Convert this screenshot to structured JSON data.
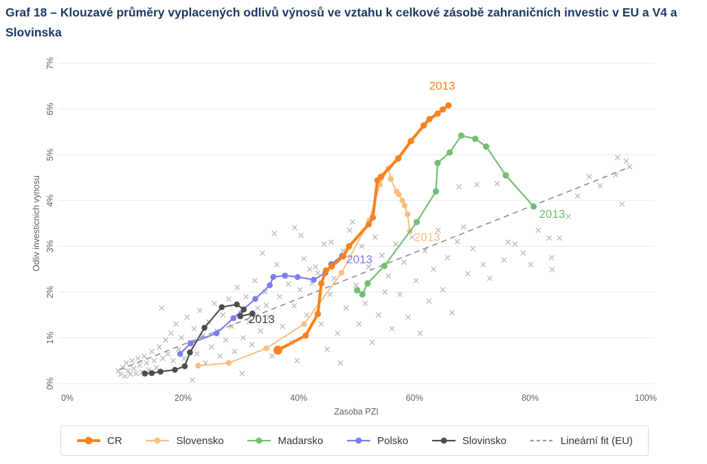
{
  "title": "Graf 18 – Klouzavé průměry vyplacených odlivů výnosů ve vztahu k celkové zásobě zahraničních investic v EU a V4 a Slovinska",
  "colors": {
    "title_text": "#1b3a66",
    "axis_text": "#5a6068",
    "gridline": "#e3eaf0",
    "scatter": "#b5b5b5",
    "fit_line": "#8a8a8a"
  },
  "chart_data": {
    "type": "scatter",
    "title": "Graf 18 – Klouzavé průměry vyplacených odlivů výnosů ve vztahu k celkové zásobě zahraničních investic v EU a V4 a Slovinska",
    "xlabel": "Zasoba PZI",
    "ylabel": "Odliv investicnich vynosu",
    "xlim": [
      0,
      100
    ],
    "ylim": [
      0,
      7
    ],
    "grid": "horizontal",
    "legend_position": "bottom",
    "x_ticks": [
      {
        "value": 0,
        "label": "0%"
      },
      {
        "value": 20,
        "label": "20%"
      },
      {
        "value": 40,
        "label": "40%"
      },
      {
        "value": 60,
        "label": "60%"
      },
      {
        "value": 80,
        "label": "80%"
      },
      {
        "value": 100,
        "label": "100%"
      }
    ],
    "y_ticks": [
      {
        "value": 0,
        "label": "0%"
      },
      {
        "value": 1,
        "label": "1%"
      },
      {
        "value": 2,
        "label": "2%"
      },
      {
        "value": 3,
        "label": "3%"
      },
      {
        "value": 4,
        "label": "4%"
      },
      {
        "value": 5,
        "label": "5%"
      },
      {
        "value": 6,
        "label": "6%"
      },
      {
        "value": 7,
        "label": "7%"
      }
    ],
    "series": [
      {
        "name": "Slovensko",
        "color": "#fcbe7e",
        "line_width": 2,
        "marker": "circle",
        "marker_r": 4.2,
        "end_label": {
          "text": "2013",
          "x": 62.2,
          "y": 3.12
        },
        "points": [
          [
            22.6,
            0.39
          ],
          [
            27.9,
            0.45
          ],
          [
            34.4,
            0.77
          ],
          [
            40.9,
            1.3
          ],
          [
            47.4,
            2.42
          ],
          [
            52.2,
            3.56
          ],
          [
            54.0,
            4.35
          ],
          [
            55.5,
            4.7
          ],
          [
            55.9,
            4.47
          ],
          [
            56.9,
            4.2
          ],
          [
            57.3,
            4.13
          ],
          [
            57.9,
            4.0
          ],
          [
            58.3,
            3.89
          ],
          [
            58.8,
            3.7
          ],
          [
            59.2,
            3.33
          ]
        ]
      },
      {
        "name": "Madarsko",
        "color": "#72bf72",
        "line_width": 2.2,
        "marker": "circle",
        "marker_r": 4.6,
        "end_label": {
          "text": "2013",
          "x": 83.8,
          "y": 3.62
        },
        "points": [
          [
            50.1,
            2.04
          ],
          [
            51.0,
            1.95
          ],
          [
            51.9,
            2.19
          ],
          [
            54.8,
            2.57
          ],
          [
            60.4,
            3.53
          ],
          [
            63.7,
            4.2
          ],
          [
            64.0,
            4.82
          ],
          [
            66.1,
            5.05
          ],
          [
            68.1,
            5.42
          ],
          [
            70.5,
            5.35
          ],
          [
            72.4,
            5.18
          ],
          [
            75.8,
            4.55
          ],
          [
            80.6,
            3.87
          ]
        ]
      },
      {
        "name": "Polsko",
        "color": "#7b7cf0",
        "line_width": 2.2,
        "marker": "circle",
        "marker_r": 4.3,
        "end_label": {
          "text": "2013",
          "x": 50.5,
          "y": 2.63
        },
        "points": [
          [
            19.5,
            0.65
          ],
          [
            21.3,
            0.88
          ],
          [
            25.8,
            1.1
          ],
          [
            28.7,
            1.43
          ],
          [
            32.5,
            1.85
          ],
          [
            35.0,
            2.15
          ],
          [
            35.6,
            2.33
          ],
          [
            37.6,
            2.36
          ],
          [
            39.8,
            2.33
          ],
          [
            42.6,
            2.27
          ],
          [
            44.6,
            2.42
          ],
          [
            45.6,
            2.61
          ],
          [
            47.5,
            2.79
          ]
        ]
      },
      {
        "name": "Slovinsko",
        "color": "#4d4d4d",
        "line_width": 2.2,
        "marker": "circle",
        "marker_r": 4.3,
        "end_label": {
          "text": "2013",
          "x": 33.6,
          "y": 1.32
        },
        "points": [
          [
            13.4,
            0.22
          ],
          [
            14.6,
            0.23
          ],
          [
            16.1,
            0.26
          ],
          [
            18.6,
            0.3
          ],
          [
            20.3,
            0.38
          ],
          [
            21.2,
            0.68
          ],
          [
            23.7,
            1.22
          ],
          [
            26.7,
            1.67
          ],
          [
            29.3,
            1.73
          ],
          [
            30.5,
            1.62
          ],
          [
            29.9,
            1.47
          ],
          [
            32.0,
            1.53
          ]
        ]
      },
      {
        "name": "CR",
        "color": "#f8821f",
        "line_width": 4.2,
        "marker": "circle",
        "marker_r": 4.6,
        "start_marker_r": 6.5,
        "end_label": {
          "text": "2013",
          "x": 64.8,
          "y": 6.42
        },
        "points": [
          [
            36.4,
            0.73
          ],
          [
            41.2,
            1.05
          ],
          [
            43.3,
            1.52
          ],
          [
            43.9,
            2.19
          ],
          [
            44.7,
            2.47
          ],
          [
            45.7,
            2.56
          ],
          [
            47.7,
            2.78
          ],
          [
            48.7,
            3.0
          ],
          [
            52.1,
            3.48
          ],
          [
            52.8,
            3.63
          ],
          [
            53.6,
            4.44
          ],
          [
            54.2,
            4.52
          ],
          [
            57.2,
            4.92
          ],
          [
            59.4,
            5.3
          ],
          [
            61.6,
            5.64
          ],
          [
            62.6,
            5.78
          ],
          [
            64.0,
            5.9
          ],
          [
            64.9,
            5.99
          ],
          [
            65.9,
            6.08
          ]
        ]
      }
    ],
    "eu_scatter": {
      "name": "EU observations",
      "marker": "x",
      "color": "#b5b5b5",
      "points": [
        [
          8.8,
          0.28
        ],
        [
          9.2,
          0.2
        ],
        [
          9.6,
          0.35
        ],
        [
          10.0,
          0.16
        ],
        [
          10.2,
          0.45
        ],
        [
          10.5,
          0.28
        ],
        [
          10.9,
          0.2
        ],
        [
          11.2,
          0.5
        ],
        [
          11.5,
          0.33
        ],
        [
          11.9,
          0.22
        ],
        [
          12.2,
          0.55
        ],
        [
          12.5,
          0.4
        ],
        [
          12.9,
          0.25
        ],
        [
          13.3,
          0.6
        ],
        [
          13.7,
          0.45
        ],
        [
          14.1,
          0.3
        ],
        [
          14.6,
          0.7
        ],
        [
          15.0,
          0.5
        ],
        [
          15.4,
          0.35
        ],
        [
          15.9,
          0.8
        ],
        [
          16.3,
          1.65
        ],
        [
          16.5,
          0.55
        ],
        [
          17.0,
          0.95
        ],
        [
          17.4,
          0.65
        ],
        [
          17.9,
          1.1
        ],
        [
          18.3,
          0.5
        ],
        [
          18.8,
          1.3
        ],
        [
          19.2,
          0.75
        ],
        [
          19.7,
          1.0
        ],
        [
          20.2,
          0.55
        ],
        [
          20.7,
          1.45
        ],
        [
          21.2,
          0.9
        ],
        [
          21.6,
          0.08
        ],
        [
          21.9,
          1.2
        ],
        [
          22.4,
          0.65
        ],
        [
          22.9,
          1.6
        ],
        [
          23.4,
          1.05
        ],
        [
          23.9,
          0.45
        ],
        [
          24.4,
          1.35
        ],
        [
          24.9,
          0.8
        ],
        [
          25.4,
          1.75
        ],
        [
          25.9,
          1.15
        ],
        [
          26.4,
          0.6
        ],
        [
          26.9,
          1.5
        ],
        [
          27.4,
          0.95
        ],
        [
          27.9,
          1.85
        ],
        [
          28.4,
          1.25
        ],
        [
          28.9,
          0.7
        ],
        [
          29.4,
          2.1
        ],
        [
          29.9,
          1.55
        ],
        [
          30.2,
          0.22
        ],
        [
          30.4,
          1.0
        ],
        [
          30.9,
          1.9
        ],
        [
          31.4,
          1.35
        ],
        [
          31.9,
          0.85
        ],
        [
          32.4,
          2.25
        ],
        [
          32.9,
          1.65
        ],
        [
          33.4,
          1.15
        ],
        [
          33.7,
          2.85
        ],
        [
          34.2,
          2.0
        ],
        [
          34.4,
          1.71
        ],
        [
          34.9,
          1.45
        ],
        [
          35.4,
          0.6
        ],
        [
          35.8,
          3.28
        ],
        [
          36.2,
          2.6
        ],
        [
          36.7,
          1.9
        ],
        [
          37.2,
          1.25
        ],
        [
          37.7,
          2.35
        ],
        [
          38.2,
          2.18
        ],
        [
          38.7,
          0.9
        ],
        [
          39.2,
          1.7
        ],
        [
          39.3,
          3.41
        ],
        [
          39.7,
          0.5
        ],
        [
          40.2,
          2.05
        ],
        [
          40.4,
          3.24
        ],
        [
          40.9,
          2.73
        ],
        [
          41.4,
          1.5
        ],
        [
          41.9,
          2.5
        ],
        [
          42.3,
          2.19
        ],
        [
          42.9,
          2.55
        ],
        [
          43.3,
          2.42
        ],
        [
          43.9,
          1.3
        ],
        [
          44.4,
          3.05
        ],
        [
          44.9,
          0.75
        ],
        [
          45.4,
          1.95
        ],
        [
          45.6,
          3.09
        ],
        [
          46.1,
          2.3
        ],
        [
          46.7,
          1.1
        ],
        [
          47.2,
          0.45
        ],
        [
          47.7,
          2.9
        ],
        [
          48.2,
          1.65
        ],
        [
          48.8,
          3.35
        ],
        [
          49.3,
          3.53
        ],
        [
          49.9,
          2.15
        ],
        [
          50.4,
          1.3
        ],
        [
          50.9,
          3.0
        ],
        [
          51.5,
          1.75
        ],
        [
          52.1,
          2.55
        ],
        [
          52.7,
          0.9
        ],
        [
          53.2,
          3.2
        ],
        [
          53.8,
          1.5
        ],
        [
          54.4,
          2.8
        ],
        [
          54.9,
          2.0
        ],
        [
          55.5,
          2.35
        ],
        [
          56.1,
          1.2
        ],
        [
          56.8,
          3.05
        ],
        [
          57.5,
          1.95
        ],
        [
          58.2,
          2.65
        ],
        [
          58.9,
          1.45
        ],
        [
          59.6,
          3.2
        ],
        [
          60.3,
          2.25
        ],
        [
          61.0,
          1.1
        ],
        [
          61.8,
          2.9
        ],
        [
          62.5,
          1.8
        ],
        [
          63.3,
          2.5
        ],
        [
          64.1,
          3.35
        ],
        [
          64.9,
          2.05
        ],
        [
          65.7,
          2.75
        ],
        [
          66.5,
          1.55
        ],
        [
          67.4,
          3.1
        ],
        [
          67.7,
          4.3
        ],
        [
          68.5,
          3.42
        ],
        [
          69.2,
          2.4
        ],
        [
          70.1,
          2.95
        ],
        [
          70.8,
          4.35
        ],
        [
          71.9,
          2.6
        ],
        [
          73.0,
          2.3
        ],
        [
          74.3,
          4.37
        ],
        [
          75.5,
          2.7
        ],
        [
          76.2,
          3.09
        ],
        [
          77.4,
          3.05
        ],
        [
          78.8,
          2.85
        ],
        [
          80.1,
          2.6
        ],
        [
          81.4,
          3.35
        ],
        [
          83.3,
          3.18
        ],
        [
          83.7,
          2.75
        ],
        [
          83.8,
          2.49
        ],
        [
          85.1,
          3.18
        ],
        [
          86.6,
          3.65
        ],
        [
          88.2,
          4.1
        ],
        [
          90.2,
          4.52
        ],
        [
          92.1,
          4.32
        ],
        [
          94.8,
          4.56
        ],
        [
          95.1,
          4.94
        ],
        [
          95.9,
          3.92
        ],
        [
          96.6,
          4.86
        ],
        [
          97.2,
          4.74
        ]
      ]
    },
    "fit_line": {
      "name": "Lineární fit (EU)",
      "style": "dashed",
      "color": "#8a8a8a",
      "from": [
        9.0,
        0.3
      ],
      "to": [
        97.2,
        4.73
      ]
    }
  },
  "legend": {
    "items": [
      {
        "label": "CR",
        "color": "#f8821f",
        "swatch": "thick-line-dot"
      },
      {
        "label": "Slovensko",
        "color": "#fcbe7e",
        "swatch": "line-dot"
      },
      {
        "label": "Madarsko",
        "color": "#72bf72",
        "swatch": "line-dot"
      },
      {
        "label": "Polsko",
        "color": "#7b7cf0",
        "swatch": "line-dot"
      },
      {
        "label": "Slovinsko",
        "color": "#4d4d4d",
        "swatch": "line-dot"
      },
      {
        "label": "Lineární fit (EU)",
        "color": "#9a9a9a",
        "swatch": "dashed-line"
      }
    ]
  }
}
